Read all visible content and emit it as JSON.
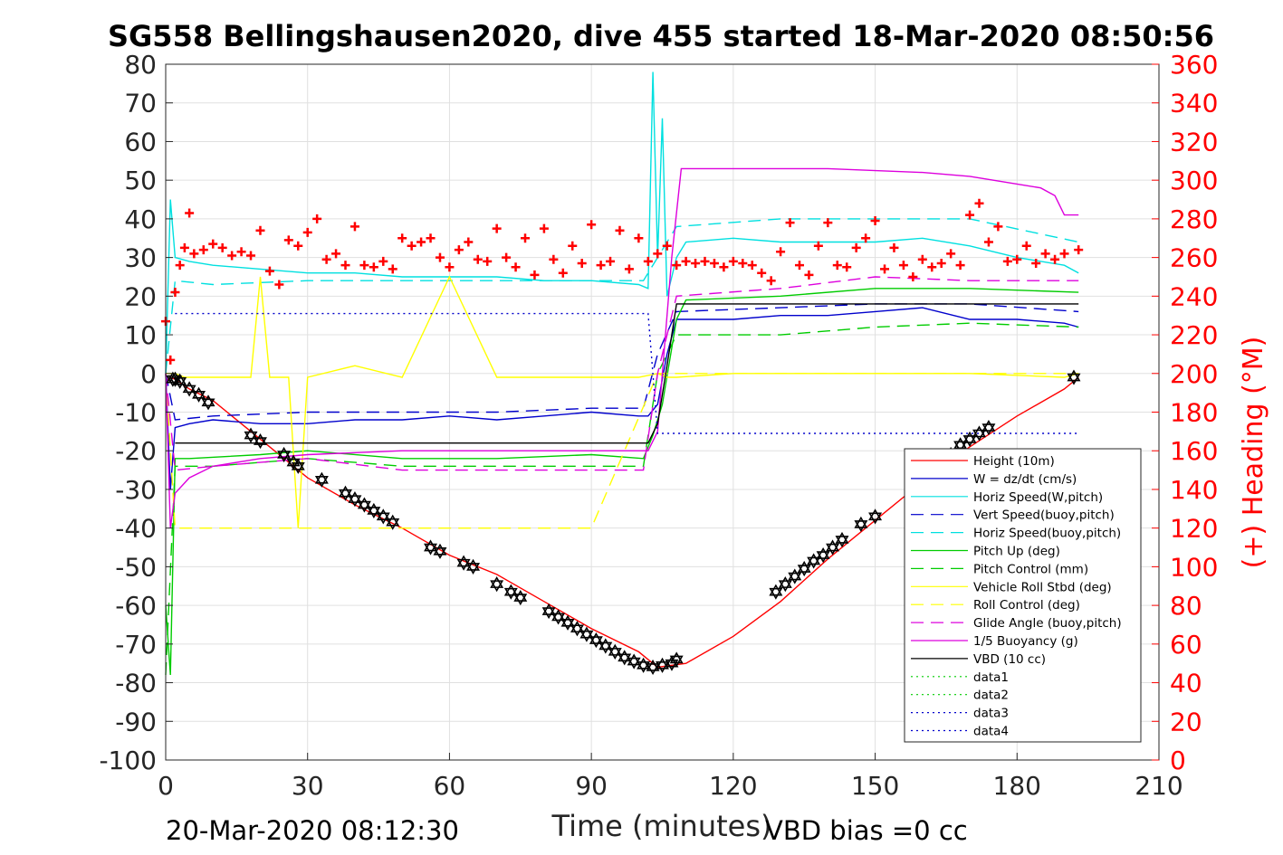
{
  "chart_data": {
    "type": "line",
    "title": "SG558 Bellingshausen2020, dive 455 started 18-Mar-2020 08:50:56",
    "xlabel": "Time (minutes)",
    "ylabel_right": "(+) Heading (°M)",
    "xlim": [
      0,
      210
    ],
    "ylim_left": [
      -100,
      80
    ],
    "ylim_right": [
      0,
      360
    ],
    "x_ticks": [
      "0",
      "30",
      "60",
      "90",
      "120",
      "150",
      "180",
      "210"
    ],
    "y_ticks_left": [
      "80",
      "70",
      "60",
      "50",
      "40",
      "30",
      "20",
      "10",
      "0",
      "-10",
      "-20",
      "-30",
      "-40",
      "-50",
      "-60",
      "-70",
      "-80",
      "-90",
      "-100"
    ],
    "y_ticks_right": [
      "360",
      "340",
      "320",
      "300",
      "280",
      "260",
      "240",
      "220",
      "200",
      "180",
      "160",
      "140",
      "120",
      "100",
      "80",
      "60",
      "40",
      "20",
      "0"
    ],
    "grid": true,
    "legend_position": "lower-right",
    "footer_left": "20-Mar-2020 08:12:30",
    "footer_right": "VBD bias =0 cc",
    "legend": [
      {
        "label": "Height (10m)",
        "color": "#ff0000",
        "dash": "solid"
      },
      {
        "label": "W = dz/dt (cm/s)",
        "color": "#0000cc",
        "dash": "solid"
      },
      {
        "label": "Horiz Speed(W,pitch)",
        "color": "#00e0e0",
        "dash": "solid"
      },
      {
        "label": "Vert Speed(buoy,pitch)",
        "color": "#0000cc",
        "dash": "dashed"
      },
      {
        "label": "Horiz Speed(buoy,pitch)",
        "color": "#00e0e0",
        "dash": "dashed"
      },
      {
        "label": "Pitch Up (deg)",
        "color": "#00cc00",
        "dash": "solid"
      },
      {
        "label": "Pitch Control (mm)",
        "color": "#00cc00",
        "dash": "dashed"
      },
      {
        "label": "Vehicle Roll Stbd (deg)",
        "color": "#ffff00",
        "dash": "solid"
      },
      {
        "label": "Roll Control (deg)",
        "color": "#ffff00",
        "dash": "dashed"
      },
      {
        "label": "Glide Angle (buoy,pitch)",
        "color": "#dd00dd",
        "dash": "dashed"
      },
      {
        "label": "1/5 Buoyancy (g)",
        "color": "#dd00dd",
        "dash": "solid"
      },
      {
        "label": "VBD (10 cc)",
        "color": "#000000",
        "dash": "solid"
      },
      {
        "label": "data1",
        "color": "#00cc00",
        "dash": "dotted"
      },
      {
        "label": "data2",
        "color": "#00cc00",
        "dash": "dotted"
      },
      {
        "label": "data3",
        "color": "#0000cc",
        "dash": "dotted"
      },
      {
        "label": "data4",
        "color": "#0000cc",
        "dash": "dotted"
      }
    ],
    "series": [
      {
        "name": "Height (10m)",
        "axis": "left",
        "color": "#ff0000",
        "dash": "solid",
        "x": [
          0,
          1,
          2,
          5,
          10,
          20,
          30,
          40,
          50,
          60,
          70,
          80,
          90,
          100,
          104,
          110,
          120,
          130,
          140,
          150,
          160,
          170,
          180,
          190,
          193
        ],
        "values": [
          -2,
          -1,
          -1.5,
          -4,
          -7,
          -17,
          -27,
          -34,
          -40,
          -47,
          -52,
          -59,
          -66,
          -72,
          -76,
          -75,
          -68,
          -59,
          -48,
          -38,
          -28,
          -19,
          -11,
          -4,
          -1
        ]
      },
      {
        "name": "W = dz/dt (cm/s)",
        "axis": "left",
        "color": "#0000cc",
        "dash": "solid",
        "x": [
          0,
          1,
          2,
          5,
          10,
          20,
          30,
          40,
          50,
          60,
          70,
          80,
          90,
          100,
          102,
          104,
          106,
          108,
          110,
          120,
          130,
          140,
          150,
          160,
          170,
          180,
          190,
          193
        ],
        "values": [
          0,
          -30,
          -14,
          -13,
          -12,
          -13,
          -13,
          -12,
          -12,
          -11,
          -12,
          -11,
          -10,
          -11,
          -11,
          -8,
          5,
          14,
          14,
          14,
          15,
          15,
          16,
          17,
          14,
          14,
          13,
          12
        ]
      },
      {
        "name": "Horiz Speed(W,pitch)",
        "axis": "left",
        "color": "#00e0e0",
        "dash": "solid",
        "x": [
          0,
          1,
          2,
          5,
          10,
          20,
          30,
          40,
          50,
          60,
          70,
          80,
          90,
          100,
          102,
          103,
          104,
          105,
          106,
          108,
          110,
          120,
          130,
          140,
          150,
          160,
          170,
          180,
          190,
          193
        ],
        "values": [
          0,
          45,
          30,
          29,
          28,
          27,
          26,
          26,
          25,
          25,
          25,
          24,
          24,
          23,
          22,
          78,
          30,
          66,
          20,
          30,
          34,
          35,
          34,
          34,
          34,
          35,
          33,
          30,
          28,
          26
        ]
      },
      {
        "name": "Vert Speed(buoy,pitch)",
        "axis": "left",
        "color": "#0000cc",
        "dash": "dashed",
        "x": [
          0,
          2,
          10,
          30,
          50,
          70,
          90,
          101,
          104,
          108,
          130,
          150,
          170,
          193
        ],
        "values": [
          0,
          -12,
          -11,
          -10,
          -10,
          -10,
          -9,
          -9,
          5,
          16,
          17,
          18,
          18,
          16
        ]
      },
      {
        "name": "Horiz Speed(buoy,pitch)",
        "axis": "left",
        "color": "#00e0e0",
        "dash": "dashed",
        "x": [
          0,
          2,
          10,
          30,
          50,
          70,
          90,
          101,
          104,
          108,
          130,
          150,
          170,
          193
        ],
        "values": [
          0,
          24,
          23,
          24,
          24,
          24,
          24,
          24,
          30,
          38,
          40,
          40,
          40,
          34
        ]
      },
      {
        "name": "Pitch Up (deg)",
        "axis": "left",
        "color": "#00cc00",
        "dash": "solid",
        "x": [
          0,
          1,
          2,
          5,
          20,
          30,
          50,
          70,
          90,
          101,
          103,
          105,
          108,
          110,
          130,
          150,
          170,
          193
        ],
        "values": [
          -60,
          -78,
          -22,
          -22,
          -21,
          -20,
          -22,
          -22,
          -21,
          -22,
          -16,
          -8,
          14,
          19,
          20,
          22,
          22,
          21
        ]
      },
      {
        "name": "Pitch Control (mm)",
        "axis": "left",
        "color": "#00cc00",
        "dash": "dashed",
        "x": [
          0,
          2,
          10,
          30,
          50,
          70,
          90,
          101,
          104,
          108,
          130,
          150,
          170,
          193
        ],
        "values": [
          -78,
          -24,
          -24,
          -22,
          -24,
          -24,
          -24,
          -24,
          0,
          10,
          10,
          12,
          13,
          12
        ]
      },
      {
        "name": "Vehicle Roll Stbd (deg)",
        "axis": "left",
        "color": "#ffff00",
        "dash": "solid",
        "x": [
          0,
          2,
          4,
          6,
          8,
          10,
          12,
          14,
          16,
          18,
          20,
          22,
          24,
          26,
          28,
          30,
          40,
          50,
          60,
          70,
          80,
          90,
          100,
          104,
          106,
          108,
          120,
          130,
          150,
          170,
          190,
          193
        ],
        "values": [
          0,
          0,
          -1,
          -1,
          -1,
          -1,
          -1,
          -1,
          -1,
          -1,
          25,
          -1,
          -1,
          -1,
          -40,
          -1,
          2,
          -1,
          25,
          -1,
          -1,
          -1,
          -1,
          0,
          -1,
          -1,
          0,
          0,
          0,
          0,
          -1,
          0
        ]
      },
      {
        "name": "Roll Control (deg)",
        "axis": "left",
        "color": "#ffff00",
        "dash": "dashed",
        "x": [
          0,
          2,
          30,
          60,
          90,
          104,
          120,
          150,
          190,
          193
        ],
        "values": [
          0,
          -40,
          -40,
          -40,
          -40,
          0,
          0,
          0,
          0,
          0
        ]
      },
      {
        "name": "Glide Angle (buoy,pitch)",
        "axis": "left",
        "color": "#dd00dd",
        "dash": "dashed",
        "x": [
          0,
          2,
          10,
          30,
          50,
          70,
          90,
          101,
          104,
          108,
          130,
          150,
          170,
          193
        ],
        "values": [
          0,
          -25,
          -24,
          -22,
          -25,
          -25,
          -25,
          -25,
          0,
          20,
          22,
          25,
          24,
          24
        ]
      },
      {
        "name": "1/5 Buoyancy (g)",
        "axis": "left",
        "color": "#dd00dd",
        "dash": "solid",
        "x": [
          0,
          1,
          2,
          5,
          10,
          20,
          30,
          50,
          70,
          90,
          102,
          104,
          107,
          109,
          120,
          140,
          160,
          170,
          180,
          185,
          188,
          190,
          193
        ],
        "values": [
          0,
          -40,
          -31,
          -27,
          -24,
          -22,
          -21,
          -20,
          -20,
          -20,
          -20,
          -15,
          30,
          53,
          53,
          53,
          52,
          51,
          49,
          48,
          46,
          41,
          41
        ]
      },
      {
        "name": "VBD (10 cc)",
        "axis": "left",
        "color": "#000000",
        "dash": "solid",
        "x": [
          2,
          50,
          102,
          104,
          106,
          108,
          150,
          193
        ],
        "values": [
          -18,
          -18,
          -18,
          -13,
          2,
          18,
          18,
          18
        ]
      },
      {
        "name": "data3",
        "axis": "left",
        "color": "#0000cc",
        "dash": "dotted",
        "x": [
          2,
          102,
          104,
          193
        ],
        "values": [
          15.5,
          15.5,
          -15.5,
          -15.5
        ]
      },
      {
        "name": "Heading",
        "axis": "right",
        "color": "#ff0000",
        "marker": "+",
        "x": [
          0,
          1,
          2,
          3,
          4,
          5,
          6,
          8,
          10,
          12,
          14,
          16,
          18,
          20,
          22,
          24,
          26,
          28,
          30,
          32,
          34,
          36,
          38,
          40,
          42,
          44,
          46,
          48,
          50,
          52,
          54,
          56,
          58,
          60,
          62,
          64,
          66,
          68,
          70,
          72,
          74,
          76,
          78,
          80,
          82,
          84,
          86,
          88,
          90,
          92,
          94,
          96,
          98,
          100,
          102,
          104,
          106,
          108,
          110,
          112,
          114,
          116,
          118,
          120,
          122,
          124,
          126,
          128,
          130,
          132,
          134,
          136,
          138,
          140,
          142,
          144,
          146,
          148,
          150,
          152,
          154,
          156,
          158,
          160,
          162,
          164,
          166,
          168,
          170,
          172,
          174,
          176,
          178,
          180,
          182,
          184,
          186,
          188,
          190,
          193
        ],
        "values": [
          227,
          207,
          242,
          256,
          265,
          283,
          262,
          264,
          267,
          265,
          261,
          263,
          261,
          274,
          253,
          246,
          269,
          266,
          273,
          280,
          259,
          262,
          256,
          276,
          256,
          255,
          258,
          254,
          270,
          266,
          268,
          270,
          260,
          255,
          264,
          268,
          259,
          258,
          275,
          260,
          255,
          270,
          251,
          275,
          259,
          252,
          266,
          257,
          277,
          256,
          258,
          274,
          254,
          270,
          258,
          262,
          266,
          256,
          258,
          257,
          258,
          257,
          255,
          258,
          257,
          256,
          252,
          248,
          263,
          278,
          256,
          251,
          266,
          278,
          256,
          255,
          265,
          270,
          279,
          254,
          265,
          256,
          250,
          259,
          255,
          257,
          262,
          256,
          282,
          288,
          268,
          276,
          258,
          259,
          266,
          257,
          262,
          259,
          262,
          264
        ]
      },
      {
        "name": "Depth markers",
        "axis": "left",
        "color": "#000000",
        "marker": "hexagram",
        "x": [
          1.5,
          2,
          3,
          5,
          7,
          9,
          18,
          20,
          25,
          27,
          28,
          33,
          38,
          40,
          42,
          44,
          46,
          48,
          56,
          58,
          63,
          65,
          70,
          73,
          75,
          81,
          83,
          85,
          87,
          89,
          91,
          93,
          95,
          97,
          99,
          101,
          103,
          105,
          107,
          108,
          129,
          131,
          133,
          135,
          137,
          139,
          141,
          143,
          147,
          150,
          166,
          168,
          170,
          172,
          174,
          192
        ],
        "values": [
          -1.5,
          -1.5,
          -2,
          -4,
          -5.5,
          -7.5,
          -16,
          -17.5,
          -21,
          -23,
          -24,
          -27.5,
          -31,
          -32.5,
          -34,
          -35.5,
          -37,
          -38.5,
          -45,
          -46,
          -49,
          -50,
          -54.5,
          -56.5,
          -58,
          -61.5,
          -63,
          -64.5,
          -66,
          -67.5,
          -69,
          -70.5,
          -72,
          -73.5,
          -74.5,
          -75.5,
          -76,
          -75.5,
          -75,
          -74,
          -56.5,
          -54.5,
          -52.5,
          -50.5,
          -48.5,
          -47,
          -45,
          -43,
          -39,
          -37,
          -21,
          -18.5,
          -17,
          -15.5,
          -14,
          -1
        ]
      }
    ]
  }
}
